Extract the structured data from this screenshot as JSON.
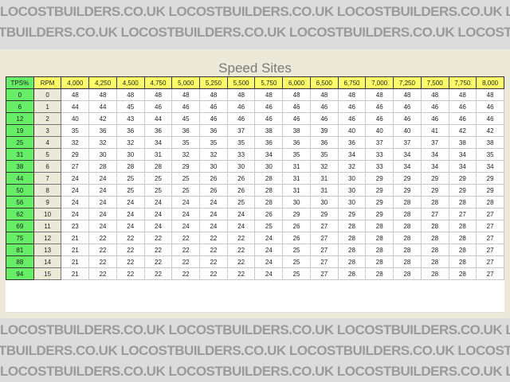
{
  "watermark": "LOCOSTBUILDERS.CO.UK",
  "title": "Speed Sites",
  "headers": {
    "tps": "TPS%",
    "rpm": "RPM",
    "columns": [
      "4,000",
      "4,250",
      "4,500",
      "4,750",
      "5,000",
      "5,250",
      "5,500",
      "5,750",
      "6,000",
      "6,500",
      "6,750",
      "7,000",
      "7,250",
      "7,500",
      "7,750",
      "8,000"
    ]
  },
  "rows": [
    {
      "tps": "0",
      "rpm": "0",
      "values": [
        48,
        48,
        48,
        48,
        48,
        48,
        48,
        48,
        48,
        48,
        48,
        48,
        48,
        48,
        48,
        48
      ]
    },
    {
      "tps": "6",
      "rpm": "1",
      "values": [
        44,
        44,
        45,
        46,
        46,
        46,
        46,
        46,
        46,
        46,
        46,
        46,
        46,
        46,
        46,
        46
      ]
    },
    {
      "tps": "12",
      "rpm": "2",
      "values": [
        40,
        42,
        43,
        44,
        45,
        46,
        46,
        46,
        46,
        46,
        46,
        46,
        46,
        46,
        46,
        46
      ]
    },
    {
      "tps": "19",
      "rpm": "3",
      "values": [
        35,
        36,
        36,
        36,
        36,
        36,
        37,
        38,
        38,
        39,
        40,
        40,
        40,
        41,
        42,
        42
      ]
    },
    {
      "tps": "25",
      "rpm": "4",
      "values": [
        32,
        32,
        32,
        34,
        35,
        35,
        35,
        36,
        36,
        36,
        36,
        37,
        37,
        37,
        38,
        38
      ]
    },
    {
      "tps": "31",
      "rpm": "5",
      "values": [
        29,
        30,
        30,
        31,
        32,
        32,
        33,
        34,
        35,
        35,
        34,
        33,
        34,
        34,
        34,
        35
      ]
    },
    {
      "tps": "38",
      "rpm": "6",
      "values": [
        27,
        28,
        28,
        28,
        29,
        30,
        30,
        30,
        31,
        32,
        32,
        33,
        34,
        34,
        34,
        34
      ]
    },
    {
      "tps": "44",
      "rpm": "7",
      "values": [
        24,
        24,
        25,
        25,
        25,
        26,
        26,
        28,
        31,
        31,
        30,
        29,
        29,
        29,
        29,
        29
      ]
    },
    {
      "tps": "50",
      "rpm": "8",
      "values": [
        24,
        24,
        25,
        25,
        25,
        26,
        26,
        28,
        31,
        31,
        30,
        29,
        29,
        29,
        29,
        29
      ]
    },
    {
      "tps": "56",
      "rpm": "9",
      "values": [
        24,
        24,
        24,
        24,
        24,
        24,
        25,
        28,
        30,
        30,
        30,
        29,
        28,
        28,
        28,
        28
      ]
    },
    {
      "tps": "62",
      "rpm": "10",
      "values": [
        24,
        24,
        24,
        24,
        24,
        24,
        24,
        26,
        29,
        29,
        29,
        29,
        28,
        27,
        27,
        27
      ]
    },
    {
      "tps": "69",
      "rpm": "11",
      "values": [
        23,
        24,
        24,
        24,
        24,
        24,
        24,
        25,
        26,
        27,
        28,
        28,
        28,
        28,
        28,
        27
      ]
    },
    {
      "tps": "75",
      "rpm": "12",
      "values": [
        21,
        22,
        22,
        22,
        22,
        22,
        22,
        24,
        26,
        27,
        28,
        28,
        28,
        28,
        28,
        27
      ]
    },
    {
      "tps": "81",
      "rpm": "13",
      "values": [
        21,
        22,
        22,
        22,
        22,
        22,
        22,
        24,
        25,
        27,
        28,
        28,
        28,
        28,
        28,
        27
      ]
    },
    {
      "tps": "88",
      "rpm": "14",
      "values": [
        21,
        22,
        22,
        22,
        22,
        22,
        22,
        24,
        25,
        27,
        28,
        28,
        28,
        28,
        28,
        27
      ]
    },
    {
      "tps": "94",
      "rpm": "15",
      "values": [
        21,
        22,
        22,
        22,
        22,
        22,
        22,
        24,
        25,
        27,
        28,
        28,
        28,
        28,
        28,
        27
      ]
    }
  ]
}
